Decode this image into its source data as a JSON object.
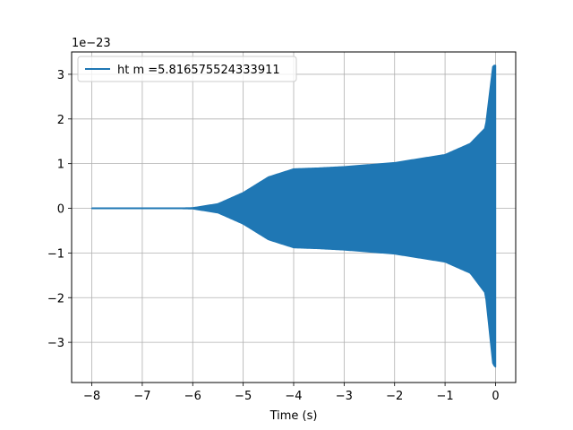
{
  "chart_data": {
    "type": "line",
    "title": "",
    "xlabel": "Time (s)",
    "ylabel": "",
    "y_scale_label": "1e−23",
    "xlim": [
      -8.4,
      0.4
    ],
    "ylim": [
      -3.9,
      3.5
    ],
    "x_ticks": [
      -8,
      -7,
      -6,
      -5,
      -4,
      -3,
      -2,
      -1,
      0
    ],
    "x_tick_labels": [
      "−8",
      "−7",
      "−6",
      "−5",
      "−4",
      "−3",
      "−2",
      "−1",
      "0"
    ],
    "y_ticks": [
      -3,
      -2,
      -1,
      0,
      1,
      2,
      3
    ],
    "y_tick_labels": [
      "−3",
      "−2",
      "−1",
      "0",
      "1",
      "2",
      "3"
    ],
    "grid": true,
    "legend_position": "top-left",
    "series": [
      {
        "name": "ht m =5.816575524333911",
        "color": "#1f77b4",
        "envelope_x": [
          -8.0,
          -6.5,
          -6.0,
          -5.5,
          -5.0,
          -4.5,
          -4.0,
          -3.5,
          -3.0,
          -2.0,
          -1.0,
          -0.5,
          -0.2,
          -0.05,
          0.0
        ],
        "envelope_upper": [
          0.0,
          0.0,
          0.01,
          0.1,
          0.35,
          0.7,
          0.88,
          0.9,
          0.93,
          1.02,
          1.2,
          1.45,
          1.8,
          3.2,
          3.2
        ],
        "envelope_lower": [
          0.0,
          0.0,
          -0.01,
          -0.1,
          -0.35,
          -0.7,
          -0.88,
          -0.9,
          -0.93,
          -1.02,
          -1.2,
          -1.45,
          -1.9,
          -3.5,
          -3.55
        ]
      }
    ]
  }
}
